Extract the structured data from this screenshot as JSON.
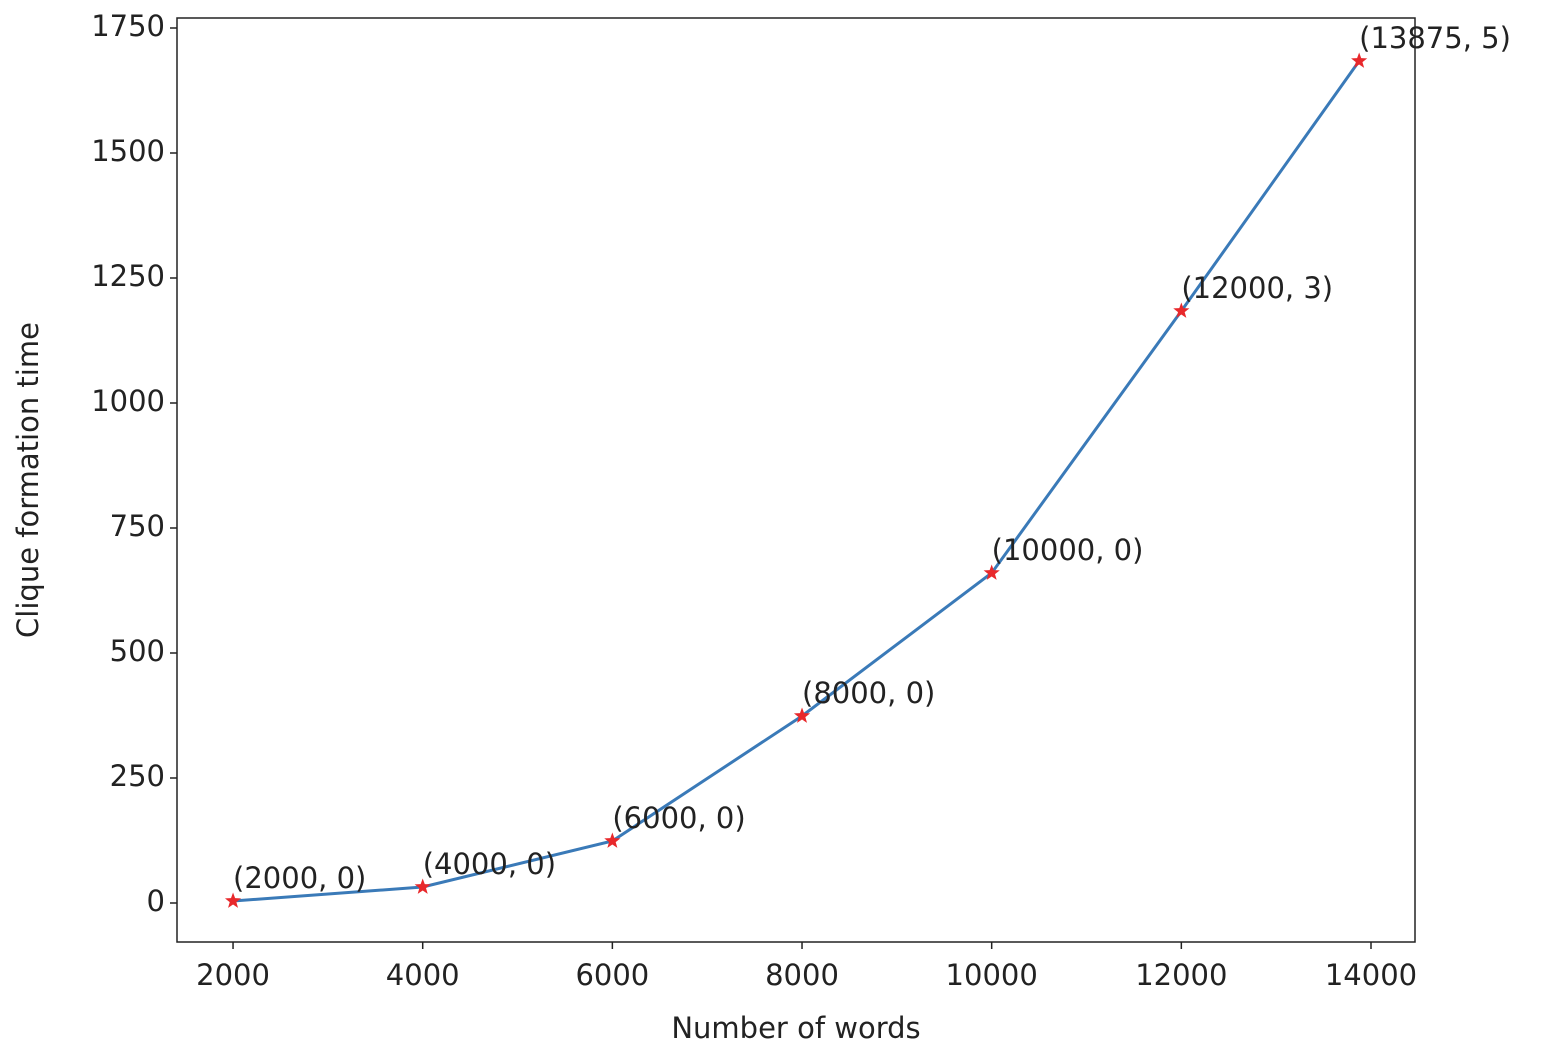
{
  "chart_data": {
    "type": "line",
    "xlabel": "Number of words",
    "ylabel": "Clique formation time",
    "x": [
      2000,
      4000,
      6000,
      8000,
      10000,
      12000,
      13875
    ],
    "series": [
      {
        "color": "#3a7ab8",
        "marker_color": "#e8282b",
        "values": [
          4,
          32,
          124,
          374,
          660,
          1184,
          1684
        ]
      }
    ],
    "annotations": [
      "(2000, 0)",
      "(4000, 0)",
      "(6000, 0)",
      "(8000, 0)",
      "(10000, 0)",
      "(12000, 3)",
      "(13875, 5)"
    ],
    "xlim": [
      1409,
      14464
    ],
    "ylim": [
      -78,
      1770
    ],
    "xticks": [
      2000,
      4000,
      6000,
      8000,
      10000,
      12000,
      14000
    ],
    "yticks": [
      0,
      250,
      500,
      750,
      1000,
      1250,
      1500,
      1750
    ],
    "grid": false
  }
}
